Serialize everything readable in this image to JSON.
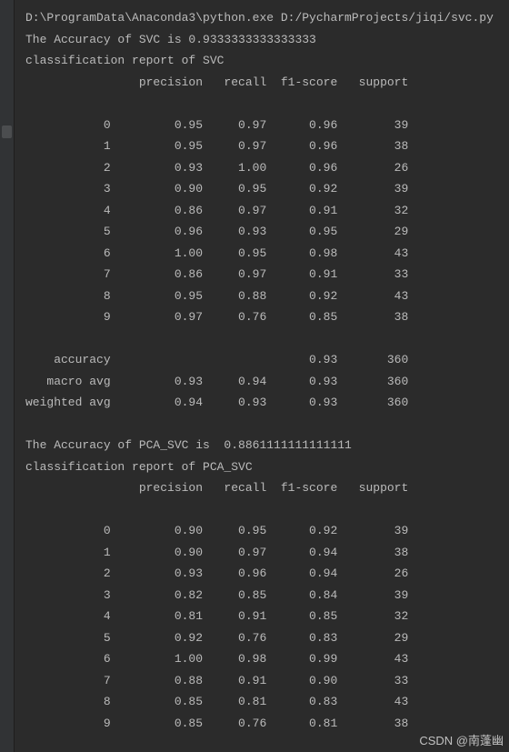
{
  "console": {
    "command_line": "D:\\ProgramData\\Anaconda3\\python.exe D:/PycharmProjects/jiqi/svc.py",
    "svc": {
      "accuracy_line": "The Accuracy of SVC is 0.9333333333333333",
      "report_title": "classification report of SVC",
      "headers": {
        "precision": "precision",
        "recall": "recall",
        "f1": "f1-score",
        "support": "support"
      },
      "rows": [
        {
          "label": "0",
          "precision": "0.95",
          "recall": "0.97",
          "f1": "0.96",
          "support": "39"
        },
        {
          "label": "1",
          "precision": "0.95",
          "recall": "0.97",
          "f1": "0.96",
          "support": "38"
        },
        {
          "label": "2",
          "precision": "0.93",
          "recall": "1.00",
          "f1": "0.96",
          "support": "26"
        },
        {
          "label": "3",
          "precision": "0.90",
          "recall": "0.95",
          "f1": "0.92",
          "support": "39"
        },
        {
          "label": "4",
          "precision": "0.86",
          "recall": "0.97",
          "f1": "0.91",
          "support": "32"
        },
        {
          "label": "5",
          "precision": "0.96",
          "recall": "0.93",
          "f1": "0.95",
          "support": "29"
        },
        {
          "label": "6",
          "precision": "1.00",
          "recall": "0.95",
          "f1": "0.98",
          "support": "43"
        },
        {
          "label": "7",
          "precision": "0.86",
          "recall": "0.97",
          "f1": "0.91",
          "support": "33"
        },
        {
          "label": "8",
          "precision": "0.95",
          "recall": "0.88",
          "f1": "0.92",
          "support": "43"
        },
        {
          "label": "9",
          "precision": "0.97",
          "recall": "0.76",
          "f1": "0.85",
          "support": "38"
        }
      ],
      "summary": {
        "accuracy": {
          "label": "accuracy",
          "precision": "",
          "recall": "",
          "f1": "0.93",
          "support": "360"
        },
        "macro": {
          "label": "macro avg",
          "precision": "0.93",
          "recall": "0.94",
          "f1": "0.93",
          "support": "360"
        },
        "weighted": {
          "label": "weighted avg",
          "precision": "0.94",
          "recall": "0.93",
          "f1": "0.93",
          "support": "360"
        }
      }
    },
    "pca": {
      "accuracy_line": "The Accuracy of PCA_SVC is  0.8861111111111111",
      "report_title": "classification report of PCA_SVC",
      "headers": {
        "precision": "precision",
        "recall": "recall",
        "f1": "f1-score",
        "support": "support"
      },
      "rows": [
        {
          "label": "0",
          "precision": "0.90",
          "recall": "0.95",
          "f1": "0.92",
          "support": "39"
        },
        {
          "label": "1",
          "precision": "0.90",
          "recall": "0.97",
          "f1": "0.94",
          "support": "38"
        },
        {
          "label": "2",
          "precision": "0.93",
          "recall": "0.96",
          "f1": "0.94",
          "support": "26"
        },
        {
          "label": "3",
          "precision": "0.82",
          "recall": "0.85",
          "f1": "0.84",
          "support": "39"
        },
        {
          "label": "4",
          "precision": "0.81",
          "recall": "0.91",
          "f1": "0.85",
          "support": "32"
        },
        {
          "label": "5",
          "precision": "0.92",
          "recall": "0.76",
          "f1": "0.83",
          "support": "29"
        },
        {
          "label": "6",
          "precision": "1.00",
          "recall": "0.98",
          "f1": "0.99",
          "support": "43"
        },
        {
          "label": "7",
          "precision": "0.88",
          "recall": "0.91",
          "f1": "0.90",
          "support": "33"
        },
        {
          "label": "8",
          "precision": "0.85",
          "recall": "0.81",
          "f1": "0.83",
          "support": "43"
        },
        {
          "label": "9",
          "precision": "0.85",
          "recall": "0.76",
          "f1": "0.81",
          "support": "38"
        }
      ]
    }
  },
  "watermark": "CSDN @南蓬幽",
  "colors": {
    "background": "#2b2b2b",
    "gutter": "#313335",
    "text": "#bbbbbb"
  }
}
